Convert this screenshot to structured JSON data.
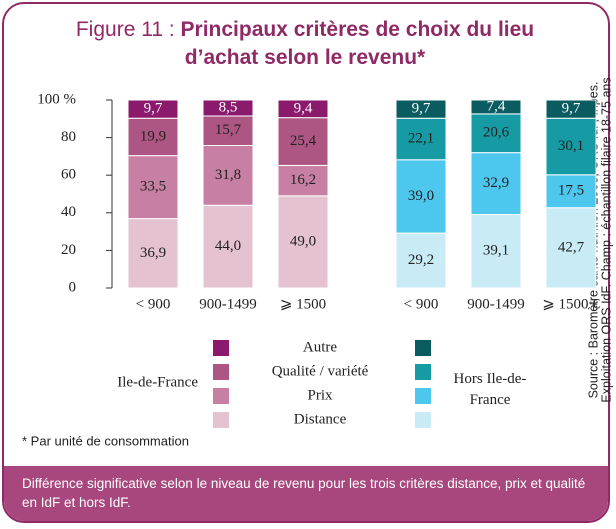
{
  "chart_data": {
    "type": "bar",
    "stacked": true,
    "figure_label": "Figure 11 :",
    "title": "Principaux critères de choix du lieu d’achat selon le revenu*",
    "groups": [
      {
        "name": "Ile-de-France",
        "categories": [
          "< 900",
          "900-1499",
          "⩾ 1500"
        ]
      },
      {
        "name": "Hors Ile-de-France",
        "categories": [
          "< 900",
          "900-1499",
          "⩾ 1500 €"
        ]
      }
    ],
    "series": [
      {
        "name": "Distance",
        "colors": [
          "#e4c2d1",
          "#c8ebf6"
        ],
        "values": [
          36.9,
          44.0,
          49.0,
          29.2,
          39.1,
          42.7
        ],
        "value_labels": [
          "36,9",
          "44,0",
          "49,0",
          "29,2",
          "39,1",
          "42,7"
        ]
      },
      {
        "name": "Prix",
        "colors": [
          "#c77fa3",
          "#4ec7ee"
        ],
        "values": [
          33.5,
          31.8,
          16.2,
          39.0,
          32.9,
          17.5
        ],
        "value_labels": [
          "33,5",
          "31,8",
          "16,2",
          "39,0",
          "32,9",
          "17,5"
        ]
      },
      {
        "name": "Qualité / variété",
        "colors": [
          "#ad5583",
          "#169ba5"
        ],
        "values": [
          19.9,
          15.7,
          25.4,
          22.1,
          20.6,
          30.1
        ],
        "value_labels": [
          "19,9",
          "15,7",
          "25,4",
          "22,1",
          "20,6",
          "30,1"
        ]
      },
      {
        "name": "Autre",
        "colors": [
          "#8b1a6d",
          "#0a5c61"
        ],
        "values": [
          9.7,
          8.5,
          9.4,
          9.7,
          7.4,
          9.7
        ],
        "value_labels": [
          "9,7",
          "8,5",
          "9,4",
          "9,7",
          "7,4",
          "9,7"
        ]
      }
    ],
    "ylim": [
      0,
      100
    ],
    "yticks": [
      0,
      20,
      40,
      60,
      80,
      {
        "value": 100,
        "label": "100 %"
      }
    ]
  },
  "footnote": "* Par unité de consommation",
  "source": [
    "Source : Baromètre santé nutrition 2008, ORS IdF, Inpes.",
    "Exploitation ORS IdF. Champ : échantillon filaire 18-75 ans"
  ],
  "note": "Différence significative selon le niveau de revenu pour les trois critères distance, prix et qualité en IdF et hors IdF."
}
